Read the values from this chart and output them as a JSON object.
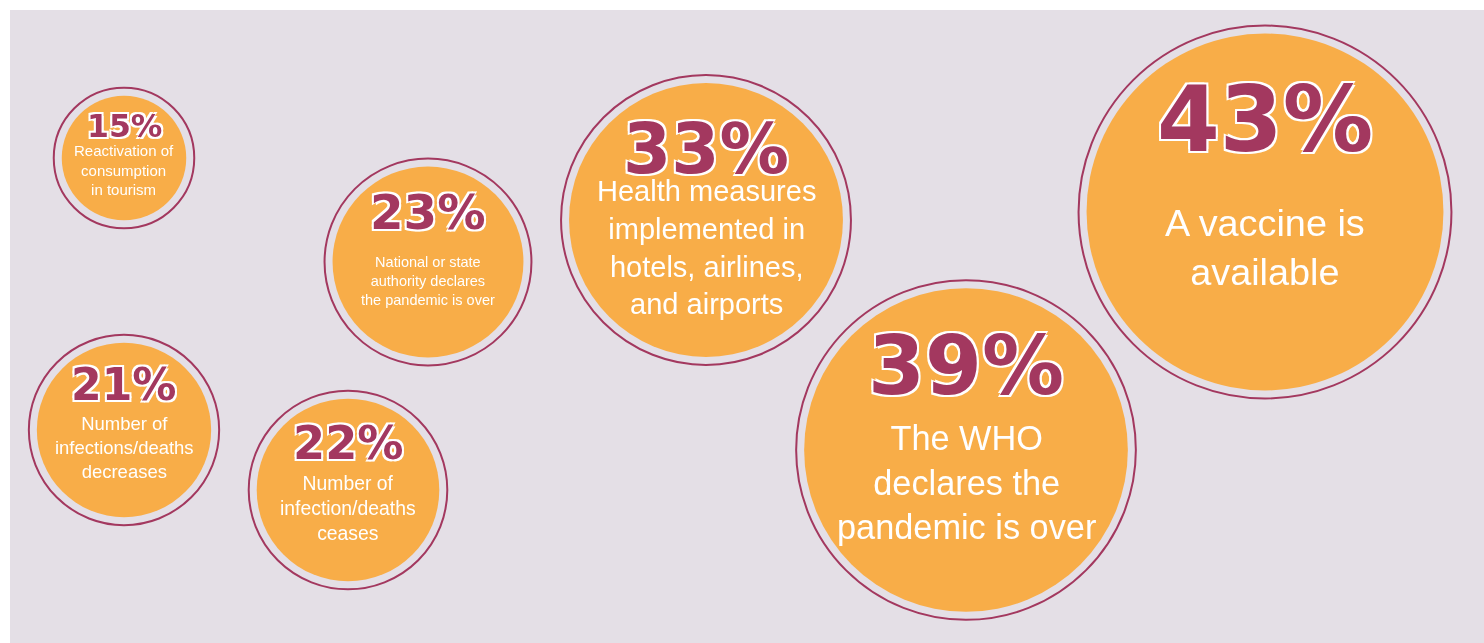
{
  "chart_data": {
    "type": "other",
    "categories": [
      "Reactivation of consumption in tourism",
      "Number of infections/deaths decreases",
      "Number of infection/deaths ceases",
      "National or state authority declares the pandemic is over",
      "Health measures implemented in hotels, airlines, and airports",
      "The WHO declares the pandemic is over",
      "A vaccine is available"
    ],
    "values": [
      15,
      21,
      22,
      23,
      33,
      39,
      43
    ],
    "value_labels": [
      "15%",
      "21%",
      "22%",
      "23%",
      "33%",
      "39%",
      "43%"
    ],
    "colors": [
      "#f8ad48",
      "#f8ad48",
      "#f8ad48",
      "#f8ad48",
      "#f8ad48",
      "#f8ad48",
      "#f8ad48"
    ]
  }
}
